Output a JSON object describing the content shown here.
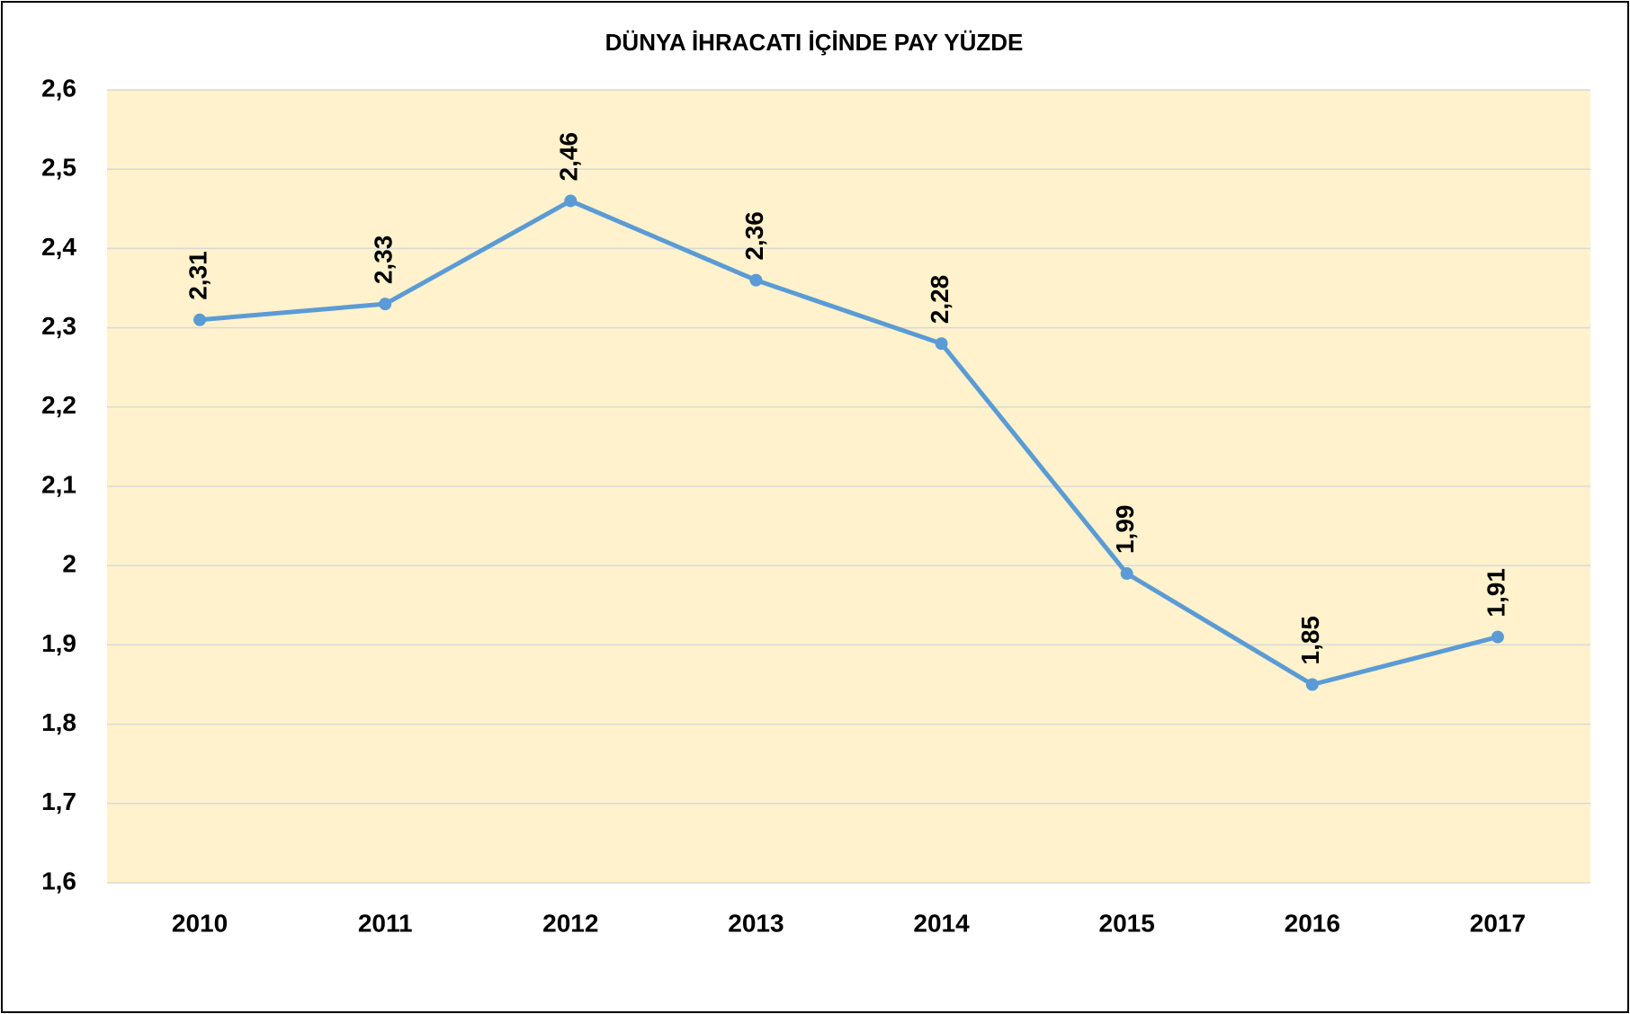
{
  "chart_data": {
    "type": "line",
    "title": "DÜNYA İHRACATI İÇİNDE PAY YÜZDE",
    "categories": [
      "2010",
      "2011",
      "2012",
      "2013",
      "2014",
      "2015",
      "2016",
      "2017"
    ],
    "values": [
      2.31,
      2.33,
      2.46,
      2.36,
      2.28,
      1.99,
      1.85,
      1.91
    ],
    "value_labels": [
      "2,31",
      "2,33",
      "2,46",
      "2,36",
      "2,28",
      "1,99",
      "1,85",
      "1,91"
    ],
    "color": "#5b9bd5",
    "ylim": [
      1.6,
      2.6
    ],
    "yticks": [
      {
        "value": 1.6,
        "label": "1,6"
      },
      {
        "value": 1.7,
        "label": "1,7"
      },
      {
        "value": 1.8,
        "label": "1,8"
      },
      {
        "value": 1.9,
        "label": "1,9"
      },
      2,
      {
        "value": 2.1,
        "label": "2,1"
      },
      {
        "value": 2.2,
        "label": "2,2"
      },
      {
        "value": 2.3,
        "label": "2,3"
      },
      {
        "value": 2.4,
        "label": "2,4"
      },
      {
        "value": 2.5,
        "label": "2,5"
      },
      {
        "value": 2.6,
        "label": "2,6"
      }
    ],
    "grid": true
  }
}
